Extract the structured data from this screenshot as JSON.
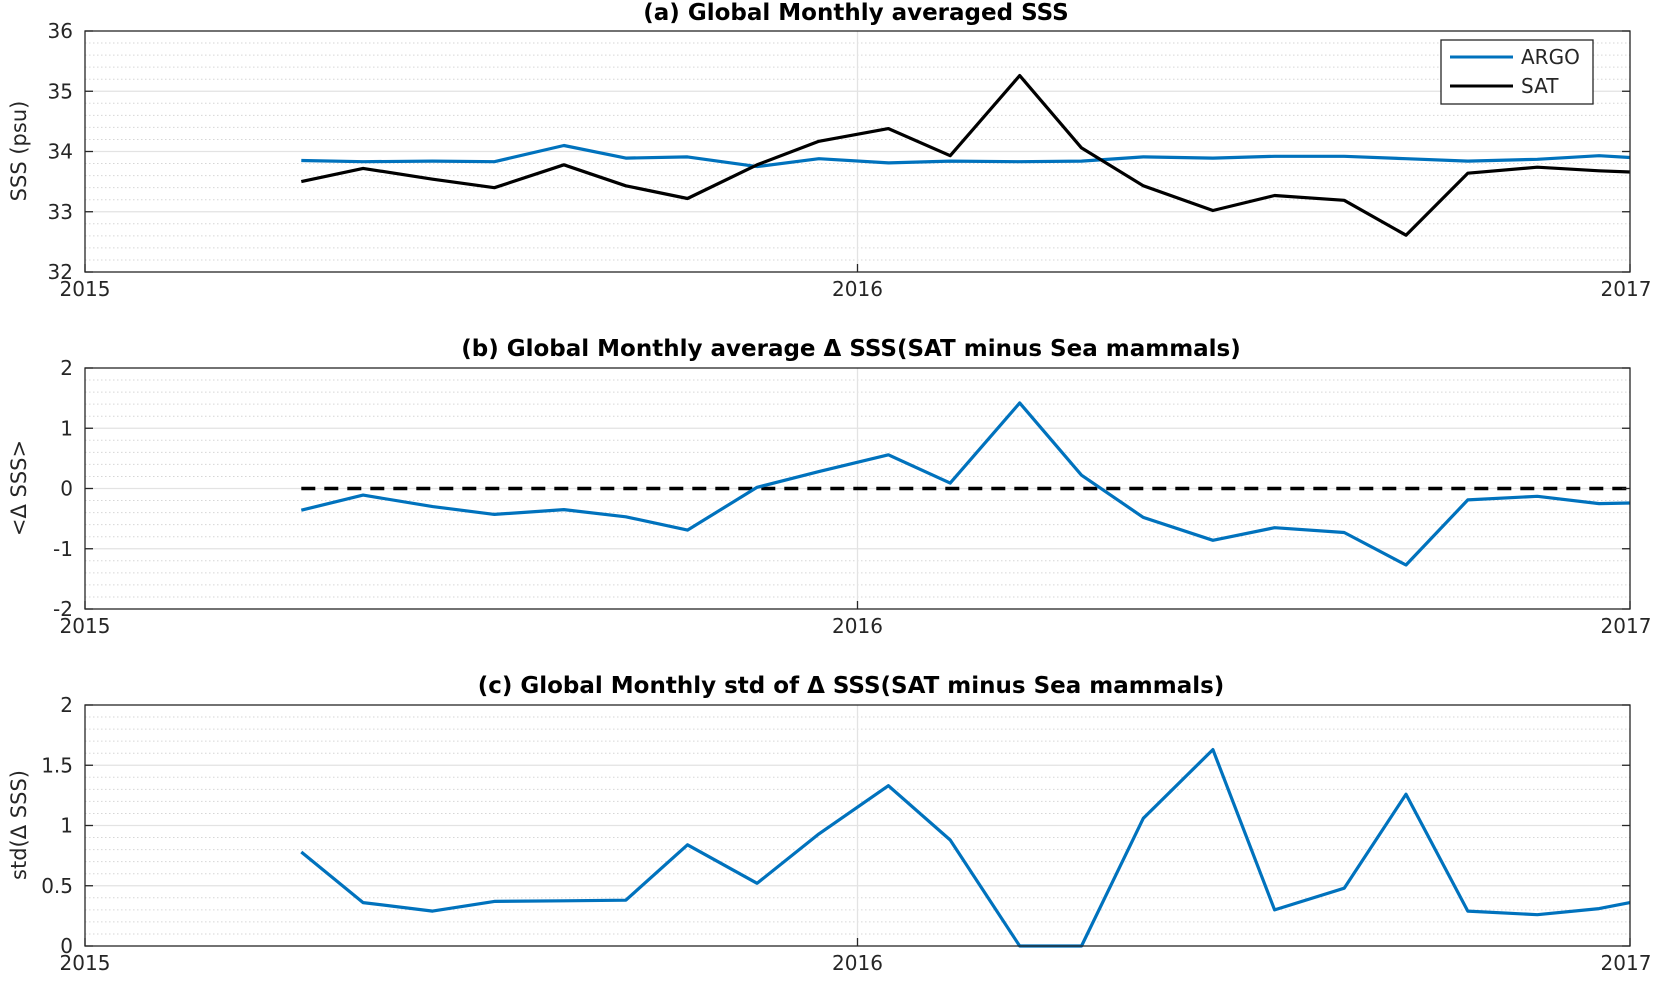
{
  "chart_data": [
    {
      "type": "line",
      "title": "(a) Global Monthly averaged SSS",
      "xlabel": "",
      "ylabel": "SSS (psu)",
      "ylim": [
        32,
        36
      ],
      "yticks": [
        "32",
        "33",
        "34",
        "35",
        "36"
      ],
      "xlim": [
        2015,
        2017
      ],
      "xticks": [
        "2015",
        "2016",
        "2017"
      ],
      "grid": true,
      "minor_grid": true,
      "legend": "top-right",
      "x": [
        2015.28,
        2015.36,
        2015.45,
        2015.53,
        2015.62,
        2015.7,
        2015.78,
        2015.87,
        2015.95,
        2016.04,
        2016.12,
        2016.21,
        2016.29,
        2016.37,
        2016.46,
        2016.54,
        2016.63,
        2016.71,
        2016.79,
        2016.88,
        2016.96,
        2017.0
      ],
      "series": [
        {
          "name": "ARGO",
          "color": "#0072BD",
          "values": [
            33.85,
            33.83,
            33.84,
            33.83,
            34.1,
            33.89,
            33.91,
            33.75,
            33.88,
            33.81,
            33.84,
            33.83,
            33.84,
            33.91,
            33.89,
            33.92,
            33.92,
            33.88,
            33.84,
            33.87,
            33.93,
            33.9
          ]
        },
        {
          "name": "SAT",
          "color": "#000000",
          "values": [
            33.5,
            33.72,
            33.54,
            33.4,
            33.78,
            33.43,
            33.22,
            33.78,
            34.17,
            34.38,
            33.93,
            35.26,
            34.06,
            33.43,
            33.02,
            33.27,
            33.19,
            32.61,
            33.64,
            33.74,
            33.68,
            33.66
          ]
        }
      ]
    },
    {
      "type": "line",
      "title": "(b) Global Monthly average Δ SSS(SAT minus Sea mammals)",
      "xlabel": "",
      "ylabel": "<Δ SSS>",
      "ylim": [
        -2,
        2
      ],
      "yticks": [
        "-2",
        "-1",
        "0",
        "1",
        "2"
      ],
      "xlim": [
        2015,
        2017
      ],
      "xticks": [
        "2015",
        "2016",
        "2017"
      ],
      "grid": true,
      "minor_grid": true,
      "reference_line": {
        "y": 0,
        "style": "dashed",
        "color": "#000000",
        "x_from": 2015.28,
        "x_to": 2017.0
      },
      "x": [
        2015.28,
        2015.36,
        2015.45,
        2015.53,
        2015.62,
        2015.7,
        2015.78,
        2015.87,
        2015.95,
        2016.04,
        2016.12,
        2016.21,
        2016.29,
        2016.37,
        2016.46,
        2016.54,
        2016.63,
        2016.71,
        2016.79,
        2016.88,
        2016.96,
        2017.0
      ],
      "series": [
        {
          "color": "#0072BD",
          "values": [
            -0.36,
            -0.11,
            -0.3,
            -0.43,
            -0.35,
            -0.47,
            -0.69,
            0.02,
            0.28,
            0.56,
            0.09,
            1.42,
            0.22,
            -0.48,
            -0.86,
            -0.65,
            -0.73,
            -1.27,
            -0.19,
            -0.13,
            -0.25,
            -0.24
          ]
        }
      ]
    },
    {
      "type": "line",
      "title": "(c) Global Monthly std of Δ SSS(SAT minus Sea mammals)",
      "xlabel": "",
      "ylabel": "std(Δ SSS)",
      "ylim": [
        0,
        2
      ],
      "yticks": [
        "0",
        "0.5",
        "1",
        "1.5",
        "2"
      ],
      "xlim": [
        2015,
        2017
      ],
      "xticks": [
        "2015",
        "2016",
        "2017"
      ],
      "grid": true,
      "minor_grid": true,
      "x": [
        2015.28,
        2015.36,
        2015.45,
        2015.53,
        2015.62,
        2015.7,
        2015.78,
        2015.87,
        2015.95,
        2016.04,
        2016.12,
        2016.21,
        2016.29,
        2016.37,
        2016.46,
        2016.54,
        2016.63,
        2016.71,
        2016.79,
        2016.88,
        2016.96,
        2017.0
      ],
      "series": [
        {
          "color": "#0072BD",
          "values": [
            0.78,
            0.36,
            0.29,
            0.37,
            0.375,
            0.38,
            0.84,
            0.52,
            0.93,
            1.33,
            0.88,
            0.0,
            0.0,
            1.06,
            1.63,
            0.3,
            0.48,
            1.26,
            0.29,
            0.26,
            0.31,
            0.36
          ]
        }
      ]
    }
  ]
}
